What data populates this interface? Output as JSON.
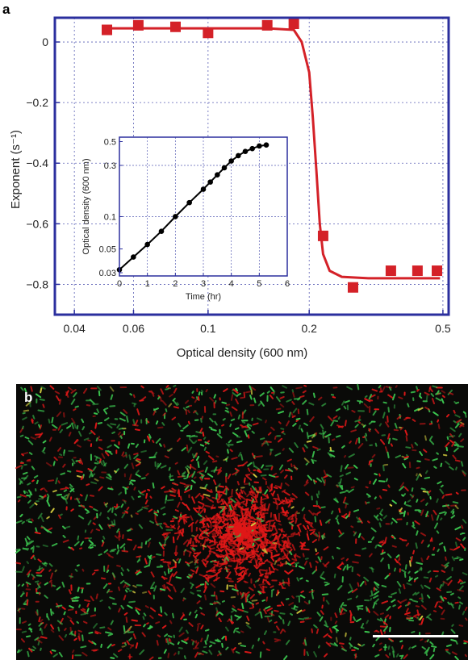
{
  "panel_a": {
    "label": "a"
  },
  "panel_b": {
    "label": "b"
  },
  "chart_data": [
    {
      "type": "scatter",
      "title": "",
      "xlabel": "Optical density (600 nm)",
      "ylabel": "Exponent (s⁻¹)",
      "xscale": "log",
      "xlim": [
        0.035,
        0.52
      ],
      "ylim": [
        -0.9,
        0.08
      ],
      "xticks": [
        0.04,
        0.06,
        0.1,
        0.2,
        0.5
      ],
      "xtick_labels": [
        "0.04",
        "0.06",
        "0.1",
        "0.2",
        "0.5"
      ],
      "yticks": [
        0,
        -0.2,
        -0.4,
        -0.6,
        -0.8
      ],
      "ytick_labels": [
        "0",
        "−0.2",
        "−0.4",
        "−0.6",
        "−0.8"
      ],
      "grid": true,
      "frame_color": "#2b2f9e",
      "series": [
        {
          "marker": "square",
          "color": "#d42128",
          "x": [
            0.05,
            0.062,
            0.08,
            0.1,
            0.15,
            0.18,
            0.22,
            0.27,
            0.35,
            0.42,
            0.48
          ],
          "y": [
            0.04,
            0.055,
            0.05,
            0.03,
            0.055,
            0.06,
            -0.64,
            -0.81,
            -0.755,
            -0.755,
            -0.755
          ]
        },
        {
          "marker": "line",
          "color": "#d42128",
          "x": [
            0.05,
            0.1,
            0.15,
            0.18,
            0.19,
            0.2,
            0.205,
            0.21,
            0.215,
            0.22,
            0.23,
            0.25,
            0.3,
            0.4,
            0.49
          ],
          "y": [
            0.045,
            0.045,
            0.045,
            0.04,
            0.0,
            -0.1,
            -0.25,
            -0.42,
            -0.6,
            -0.7,
            -0.755,
            -0.775,
            -0.78,
            -0.78,
            -0.78
          ]
        }
      ]
    },
    {
      "type": "line",
      "title": "",
      "xlabel": "Time (hr)",
      "ylabel": "Optical density (600 nm)",
      "yscale": "log",
      "xlim": [
        0,
        6
      ],
      "ylim": [
        0.028,
        0.55
      ],
      "xticks": [
        0,
        1,
        2,
        3,
        4,
        5,
        6
      ],
      "xtick_labels": [
        "0",
        "1",
        "2",
        "3",
        "4",
        "5",
        "6"
      ],
      "yticks": [
        0.03,
        0.05,
        0.1,
        0.3,
        0.5
      ],
      "ytick_labels": [
        "0.03",
        "0.05",
        "0.1",
        "0.3",
        "0.5"
      ],
      "grid": true,
      "series": [
        {
          "color": "#000000",
          "marker": "circle",
          "x": [
            0,
            0.5,
            1,
            1.5,
            2,
            2.5,
            3,
            3.25,
            3.5,
            3.75,
            4,
            4.25,
            4.5,
            4.75,
            5,
            5.25
          ],
          "y": [
            0.032,
            0.042,
            0.055,
            0.073,
            0.1,
            0.135,
            0.18,
            0.21,
            0.245,
            0.285,
            0.33,
            0.37,
            0.405,
            0.43,
            0.455,
            0.465
          ]
        }
      ]
    }
  ],
  "micrograph": {
    "background": "#0a0a08",
    "red": "#e01818",
    "green": "#3cc850",
    "yellow": "#d8d040",
    "scale_bar_color": "#ffffff"
  }
}
